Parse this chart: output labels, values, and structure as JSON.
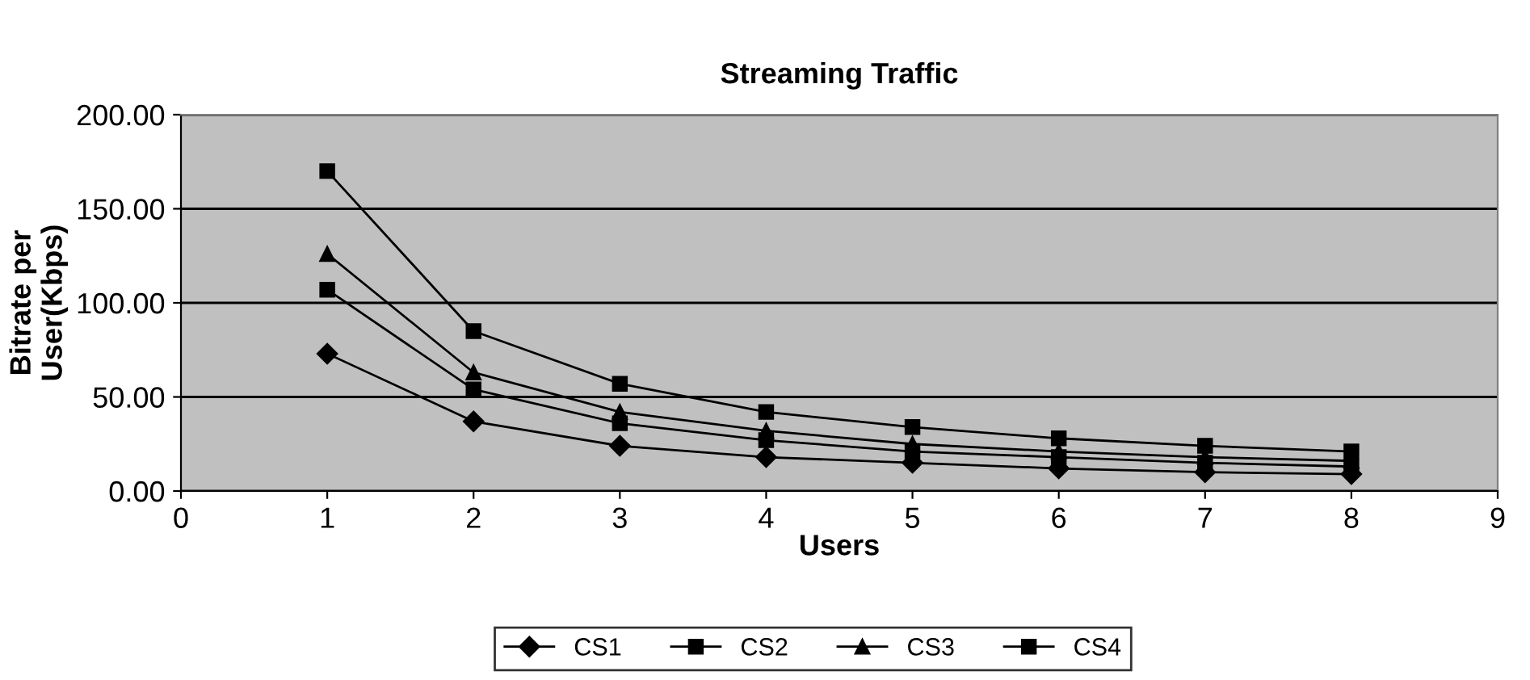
{
  "chart_data": {
    "type": "line",
    "title": "Streaming Traffic",
    "xlabel": "Users",
    "ylabel": "Bitrate per\nUser(Kbps)",
    "x": [
      1,
      2,
      3,
      4,
      5,
      6,
      7,
      8
    ],
    "series": [
      {
        "name": "CS1",
        "color": "#000000",
        "marker": "diamond",
        "values": [
          73,
          37,
          24,
          18,
          15,
          12,
          10,
          9
        ]
      },
      {
        "name": "CS2",
        "color": "#000000",
        "marker": "square",
        "values": [
          107,
          54,
          36,
          27,
          21,
          18,
          15,
          13
        ]
      },
      {
        "name": "CS3",
        "color": "#000000",
        "marker": "triangle",
        "values": [
          126,
          63,
          42,
          32,
          25,
          21,
          18,
          16
        ]
      },
      {
        "name": "CS4",
        "color": "#000000",
        "marker": "square",
        "values": [
          170,
          85,
          57,
          42,
          34,
          28,
          24,
          21
        ]
      }
    ],
    "xlim": [
      0,
      9
    ],
    "xticks": [
      0,
      1,
      2,
      3,
      4,
      5,
      6,
      7,
      8,
      9
    ],
    "ylim": [
      0,
      200
    ],
    "yticks": [
      {
        "value": 0,
        "label": "0.00"
      },
      {
        "value": 50,
        "label": "50.00"
      },
      {
        "value": 100,
        "label": "100.00"
      },
      {
        "value": 150,
        "label": "150.00"
      },
      {
        "value": 200,
        "label": "200.00"
      }
    ],
    "grid": "y",
    "legend": "bottom",
    "line_style": "solid"
  }
}
